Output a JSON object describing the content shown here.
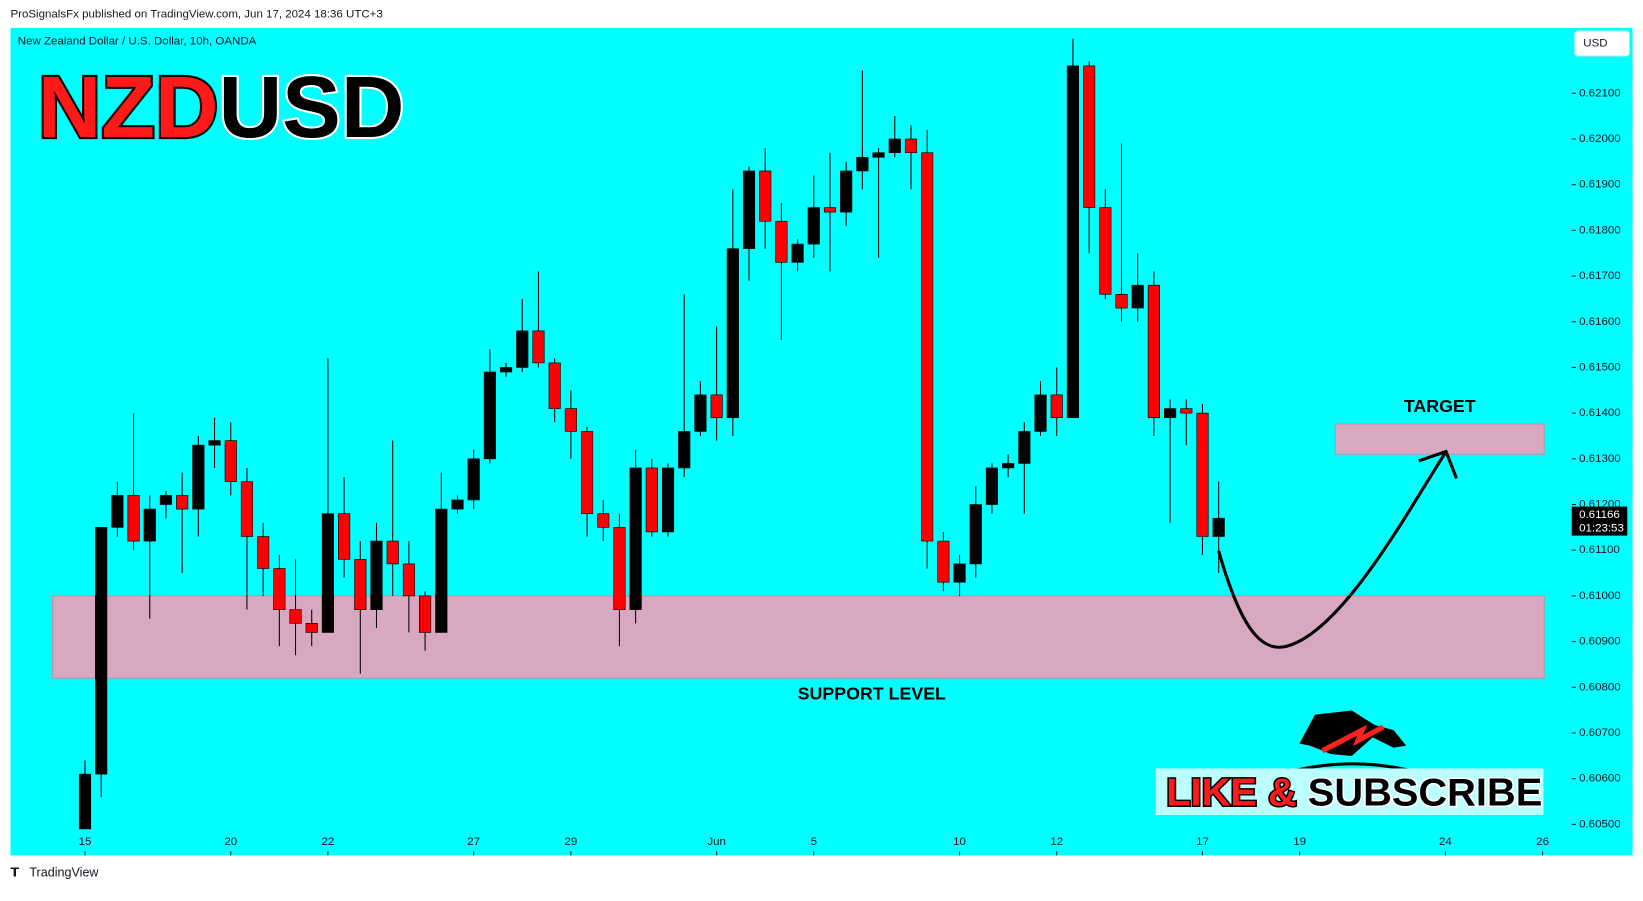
{
  "chart_data": {
    "type": "candlestick",
    "header": "ProSignalsFx published on TradingView.com, Jun 17, 2024 18:36 UTC+3",
    "symbol": "New Zealand Dollar / U.S. Dollar, 10h, OANDA",
    "title_parts": [
      "NZD",
      "USD"
    ],
    "currency": "USD",
    "footer": "TradingView",
    "up_color": "#000000",
    "down_color": "#ff0000",
    "background": "#00ffff",
    "open": [
      0.6049,
      0.6061,
      0.6115,
      0.6122,
      0.6112,
      0.612,
      0.6122,
      0.6119,
      0.6133,
      0.6134,
      0.6125,
      0.6113,
      0.6106,
      0.6097,
      0.6094,
      0.6092,
      0.6118,
      0.6108,
      0.6097,
      0.6112,
      0.6107,
      0.61,
      0.6092,
      0.6119,
      0.6121,
      0.613,
      0.6149,
      0.615,
      0.6158,
      0.6151,
      0.6141,
      0.6136,
      0.6118,
      0.6115,
      0.6097,
      0.6128,
      0.6114,
      0.6128,
      0.6136,
      0.6144,
      0.6139,
      0.6176,
      0.6193,
      0.6182,
      0.6173,
      0.6177,
      0.6185,
      0.6184,
      0.6193,
      0.6196,
      0.6197,
      0.62,
      0.6197,
      0.6112,
      0.6103,
      0.6107,
      0.612,
      0.6128,
      0.6129,
      0.6136,
      0.6144,
      0.6139,
      0.6216,
      0.6185,
      0.6166,
      0.6163,
      0.6168,
      0.6139,
      0.6141,
      0.614,
      0.6113
    ],
    "high": [
      0.6064,
      0.6115,
      0.6125,
      0.614,
      0.6122,
      0.6123,
      0.6127,
      0.6135,
      0.6139,
      0.6138,
      0.6128,
      0.6116,
      0.6109,
      0.6108,
      0.6097,
      0.6152,
      0.6126,
      0.6112,
      0.6116,
      0.6134,
      0.6112,
      0.6101,
      0.6127,
      0.6122,
      0.6132,
      0.6154,
      0.6151,
      0.6165,
      0.6171,
      0.6152,
      0.6145,
      0.6137,
      0.6121,
      0.6118,
      0.6132,
      0.613,
      0.6129,
      0.6166,
      0.6147,
      0.6159,
      0.6189,
      0.6194,
      0.6198,
      0.6186,
      0.6178,
      0.6192,
      0.6197,
      0.6195,
      0.6215,
      0.6198,
      0.6205,
      0.6203,
      0.6202,
      0.6114,
      0.6109,
      0.6124,
      0.6129,
      0.6131,
      0.6138,
      0.6147,
      0.615,
      0.6222,
      0.6217,
      0.6189,
      0.6199,
      0.6175,
      0.6171,
      0.6143,
      0.6143,
      0.6142,
      0.6125
    ],
    "low": [
      0.6049,
      0.6056,
      0.6113,
      0.611,
      0.6095,
      0.6117,
      0.6105,
      0.6113,
      0.6128,
      0.6122,
      0.6097,
      0.61,
      0.6089,
      0.6087,
      0.6089,
      0.6092,
      0.6104,
      0.6083,
      0.6093,
      0.61,
      0.6092,
      0.6088,
      0.6092,
      0.6118,
      0.6119,
      0.6129,
      0.6148,
      0.6149,
      0.615,
      0.6138,
      0.613,
      0.6113,
      0.6112,
      0.6089,
      0.6094,
      0.6113,
      0.6113,
      0.6126,
      0.6135,
      0.6134,
      0.6135,
      0.6169,
      0.6176,
      0.6156,
      0.6171,
      0.6174,
      0.6171,
      0.6181,
      0.6189,
      0.6174,
      0.6196,
      0.6189,
      0.6106,
      0.6101,
      0.61,
      0.6104,
      0.6118,
      0.6126,
      0.6118,
      0.6135,
      0.6135,
      0.6139,
      0.6175,
      0.6165,
      0.616,
      0.616,
      0.6135,
      0.6116,
      0.6133,
      0.6109,
      0.6105
    ],
    "close": [
      0.6061,
      0.6115,
      0.6122,
      0.6112,
      0.6119,
      0.6122,
      0.6119,
      0.6133,
      0.6134,
      0.6125,
      0.6113,
      0.6106,
      0.6097,
      0.6094,
      0.6092,
      0.6118,
      0.6108,
      0.6097,
      0.6112,
      0.6107,
      0.61,
      0.6092,
      0.6119,
      0.6121,
      0.613,
      0.6149,
      0.615,
      0.6158,
      0.6151,
      0.6141,
      0.6136,
      0.6118,
      0.6115,
      0.6097,
      0.6128,
      0.6114,
      0.6128,
      0.6136,
      0.6144,
      0.6139,
      0.6176,
      0.6193,
      0.6182,
      0.6173,
      0.6177,
      0.6185,
      0.6184,
      0.6193,
      0.6196,
      0.6197,
      0.62,
      0.6197,
      0.6112,
      0.6103,
      0.6107,
      0.612,
      0.6128,
      0.6129,
      0.6136,
      0.6144,
      0.6139,
      0.6216,
      0.6185,
      0.6166,
      0.6163,
      0.6168,
      0.6139,
      0.6141,
      0.614,
      0.6113,
      0.6117
    ],
    "last_price": {
      "value": 0.61166,
      "label": "0.61166",
      "countdown": "01:23:53"
    },
    "xlim": [
      -4.6,
      91.8
    ],
    "ylim": [
      0.60432,
      0.62243
    ],
    "xticks": [
      {
        "value": 0,
        "label": "15"
      },
      {
        "value": 9,
        "label": "20"
      },
      {
        "value": 15,
        "label": "22"
      },
      {
        "value": 24,
        "label": "27"
      },
      {
        "value": 30,
        "label": "29"
      },
      {
        "value": 39,
        "label": "Jun"
      },
      {
        "value": 45,
        "label": "5"
      },
      {
        "value": 54,
        "label": "10"
      },
      {
        "value": 60,
        "label": "12"
      },
      {
        "value": 69,
        "label": "17"
      },
      {
        "value": 75,
        "label": "19"
      },
      {
        "value": 84,
        "label": "24"
      },
      {
        "value": 90,
        "label": "26"
      }
    ],
    "yticks": [
      {
        "value": 0.605,
        "label": "0.60500"
      },
      {
        "value": 0.606,
        "label": "0.60600"
      },
      {
        "value": 0.607,
        "label": "0.60700"
      },
      {
        "value": 0.608,
        "label": "0.60800"
      },
      {
        "value": 0.609,
        "label": "0.60900"
      },
      {
        "value": 0.61,
        "label": "0.61000"
      },
      {
        "value": 0.611,
        "label": "0.61100"
      },
      {
        "value": 0.612,
        "label": "0.61200"
      },
      {
        "value": 0.613,
        "label": "0.61300"
      },
      {
        "value": 0.614,
        "label": "0.61400"
      },
      {
        "value": 0.615,
        "label": "0.61500"
      },
      {
        "value": 0.616,
        "label": "0.61600"
      },
      {
        "value": 0.617,
        "label": "0.61700"
      },
      {
        "value": 0.618,
        "label": "0.61800"
      },
      {
        "value": 0.619,
        "label": "0.61900"
      },
      {
        "value": 0.62,
        "label": "0.62000"
      },
      {
        "value": 0.621,
        "label": "0.62100"
      }
    ],
    "zones": [
      {
        "label": "SUPPORT LEVEL",
        "y0": 0.6082,
        "y1": 0.61,
        "x0": -2,
        "x1": 90.1,
        "color": "#d8a8c0"
      },
      {
        "label": "TARGET",
        "y0": 0.6131,
        "y1": 0.61376,
        "x0": 77.2,
        "x1": 90.1,
        "color": "#d8a8c0"
      }
    ],
    "promo": [
      "LIKE &",
      "SUBSCRIBE"
    ]
  }
}
